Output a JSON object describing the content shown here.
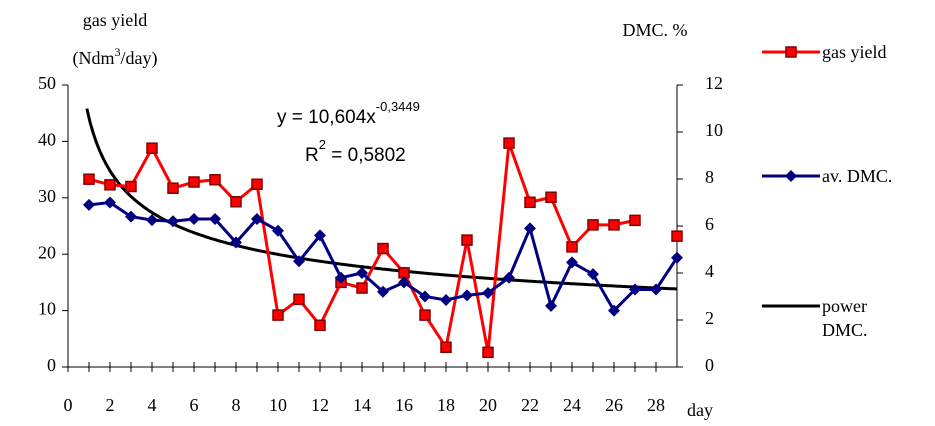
{
  "chart_data": {
    "type": "line",
    "y_label": {
      "line1": "gas yield",
      "line2_a": "(Ndm",
      "line2_sup": "3",
      "line2_b": "/day)"
    },
    "y2_label": "DMC. %",
    "x_label": "day",
    "x": [
      1,
      2,
      3,
      4,
      5,
      6,
      7,
      8,
      9,
      10,
      11,
      12,
      13,
      14,
      15,
      16,
      17,
      18,
      19,
      20,
      21,
      22,
      23,
      24,
      25,
      26,
      27,
      28,
      29
    ],
    "xlim": [
      0,
      29
    ],
    "xticks": [
      0,
      2,
      4,
      6,
      8,
      10,
      12,
      14,
      16,
      18,
      20,
      22,
      24,
      26,
      28
    ],
    "ylim": [
      0,
      50
    ],
    "yticks": [
      0,
      10,
      20,
      30,
      40,
      50
    ],
    "y2lim": [
      0,
      12
    ],
    "y2ticks": [
      0,
      2,
      4,
      6,
      8,
      10,
      12
    ],
    "series": [
      {
        "name": "gas yield",
        "color": "#ff0000",
        "marker": "square",
        "values": [
          33.3,
          32.3,
          32,
          38.8,
          31.7,
          32.8,
          33.2,
          29.3,
          32.4,
          9.2,
          12,
          7.4,
          15,
          14,
          21,
          16.7,
          9.2,
          3.5,
          22.5,
          2.6,
          39.7,
          29.2,
          30.1,
          21.3,
          25.2,
          25.2,
          26,
          null,
          23.2
        ]
      },
      {
        "name": "av. DMC.",
        "color": "#000080",
        "marker": "diamond",
        "axis": "y2",
        "values": [
          6.9,
          7.0,
          6.4,
          6.25,
          6.2,
          6.3,
          6.3,
          5.3,
          6.3,
          5.8,
          4.5,
          5.6,
          3.8,
          4.0,
          3.2,
          3.6,
          3.0,
          2.85,
          3.05,
          3.15,
          3.8,
          5.9,
          2.6,
          4.45,
          3.95,
          2.4,
          3.3,
          3.3,
          4.65
        ]
      }
    ],
    "trendline": {
      "name": "power DMC.",
      "color": "#000000",
      "axis": "y2",
      "kind": "power",
      "a": 10.604,
      "b": -0.3449
    },
    "annotations": {
      "eq_a": "y = 10,604x",
      "eq_sup": "-0,3449",
      "r_a": "R",
      "r_sup": "2",
      "r_b": " = 0,5802"
    }
  }
}
